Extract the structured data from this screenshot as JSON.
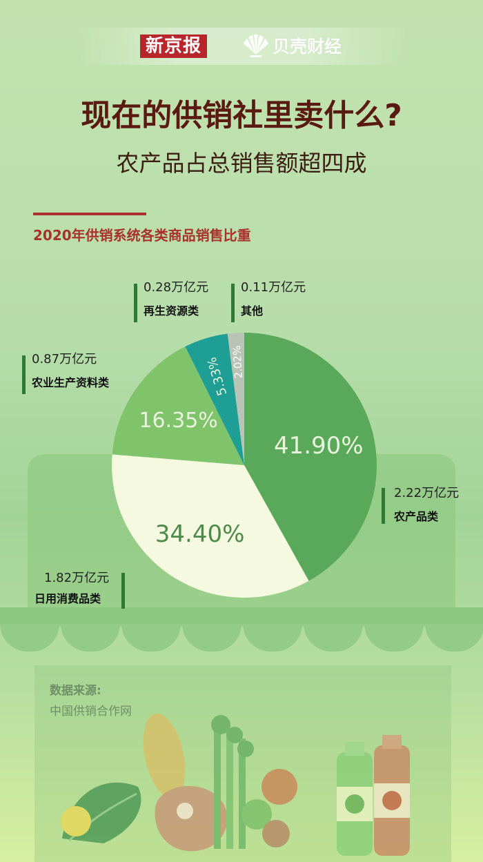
{
  "brand": {
    "xinjingbao": "新京报",
    "beike": "贝壳财经"
  },
  "title": "现在的供销社里卖什么?",
  "subtitle": "农产品占总销售额超四成",
  "source": {
    "label": "数据来源:",
    "value": "中国供销合作网"
  },
  "colors": {
    "title": "#5a1a12",
    "accent": "#a8312b",
    "callout_bar": "#2e7a34"
  },
  "chart_data": {
    "type": "pie",
    "title": "2020年供销系统各类商品销售比重",
    "slices": [
      {
        "label": "农产品类",
        "value": 41.9,
        "display": "41.90%",
        "amount": "2.22万亿元",
        "color": "#5aa85a"
      },
      {
        "label": "日用消费品类",
        "value": 34.4,
        "display": "34.40%",
        "amount": "1.82万亿元",
        "color": "#f4f9e0"
      },
      {
        "label": "农业生产资料类",
        "value": 16.35,
        "display": "16.35%",
        "amount": "0.87万亿元",
        "color": "#7fc46a"
      },
      {
        "label": "再生资源类",
        "value": 5.33,
        "display": "5.33%",
        "amount": "0.28万亿元",
        "color": "#1e9e94"
      },
      {
        "label": "其他",
        "value": 2.02,
        "display": "2.02%",
        "amount": "0.11万亿元",
        "color": "#b9c4b6"
      }
    ]
  }
}
